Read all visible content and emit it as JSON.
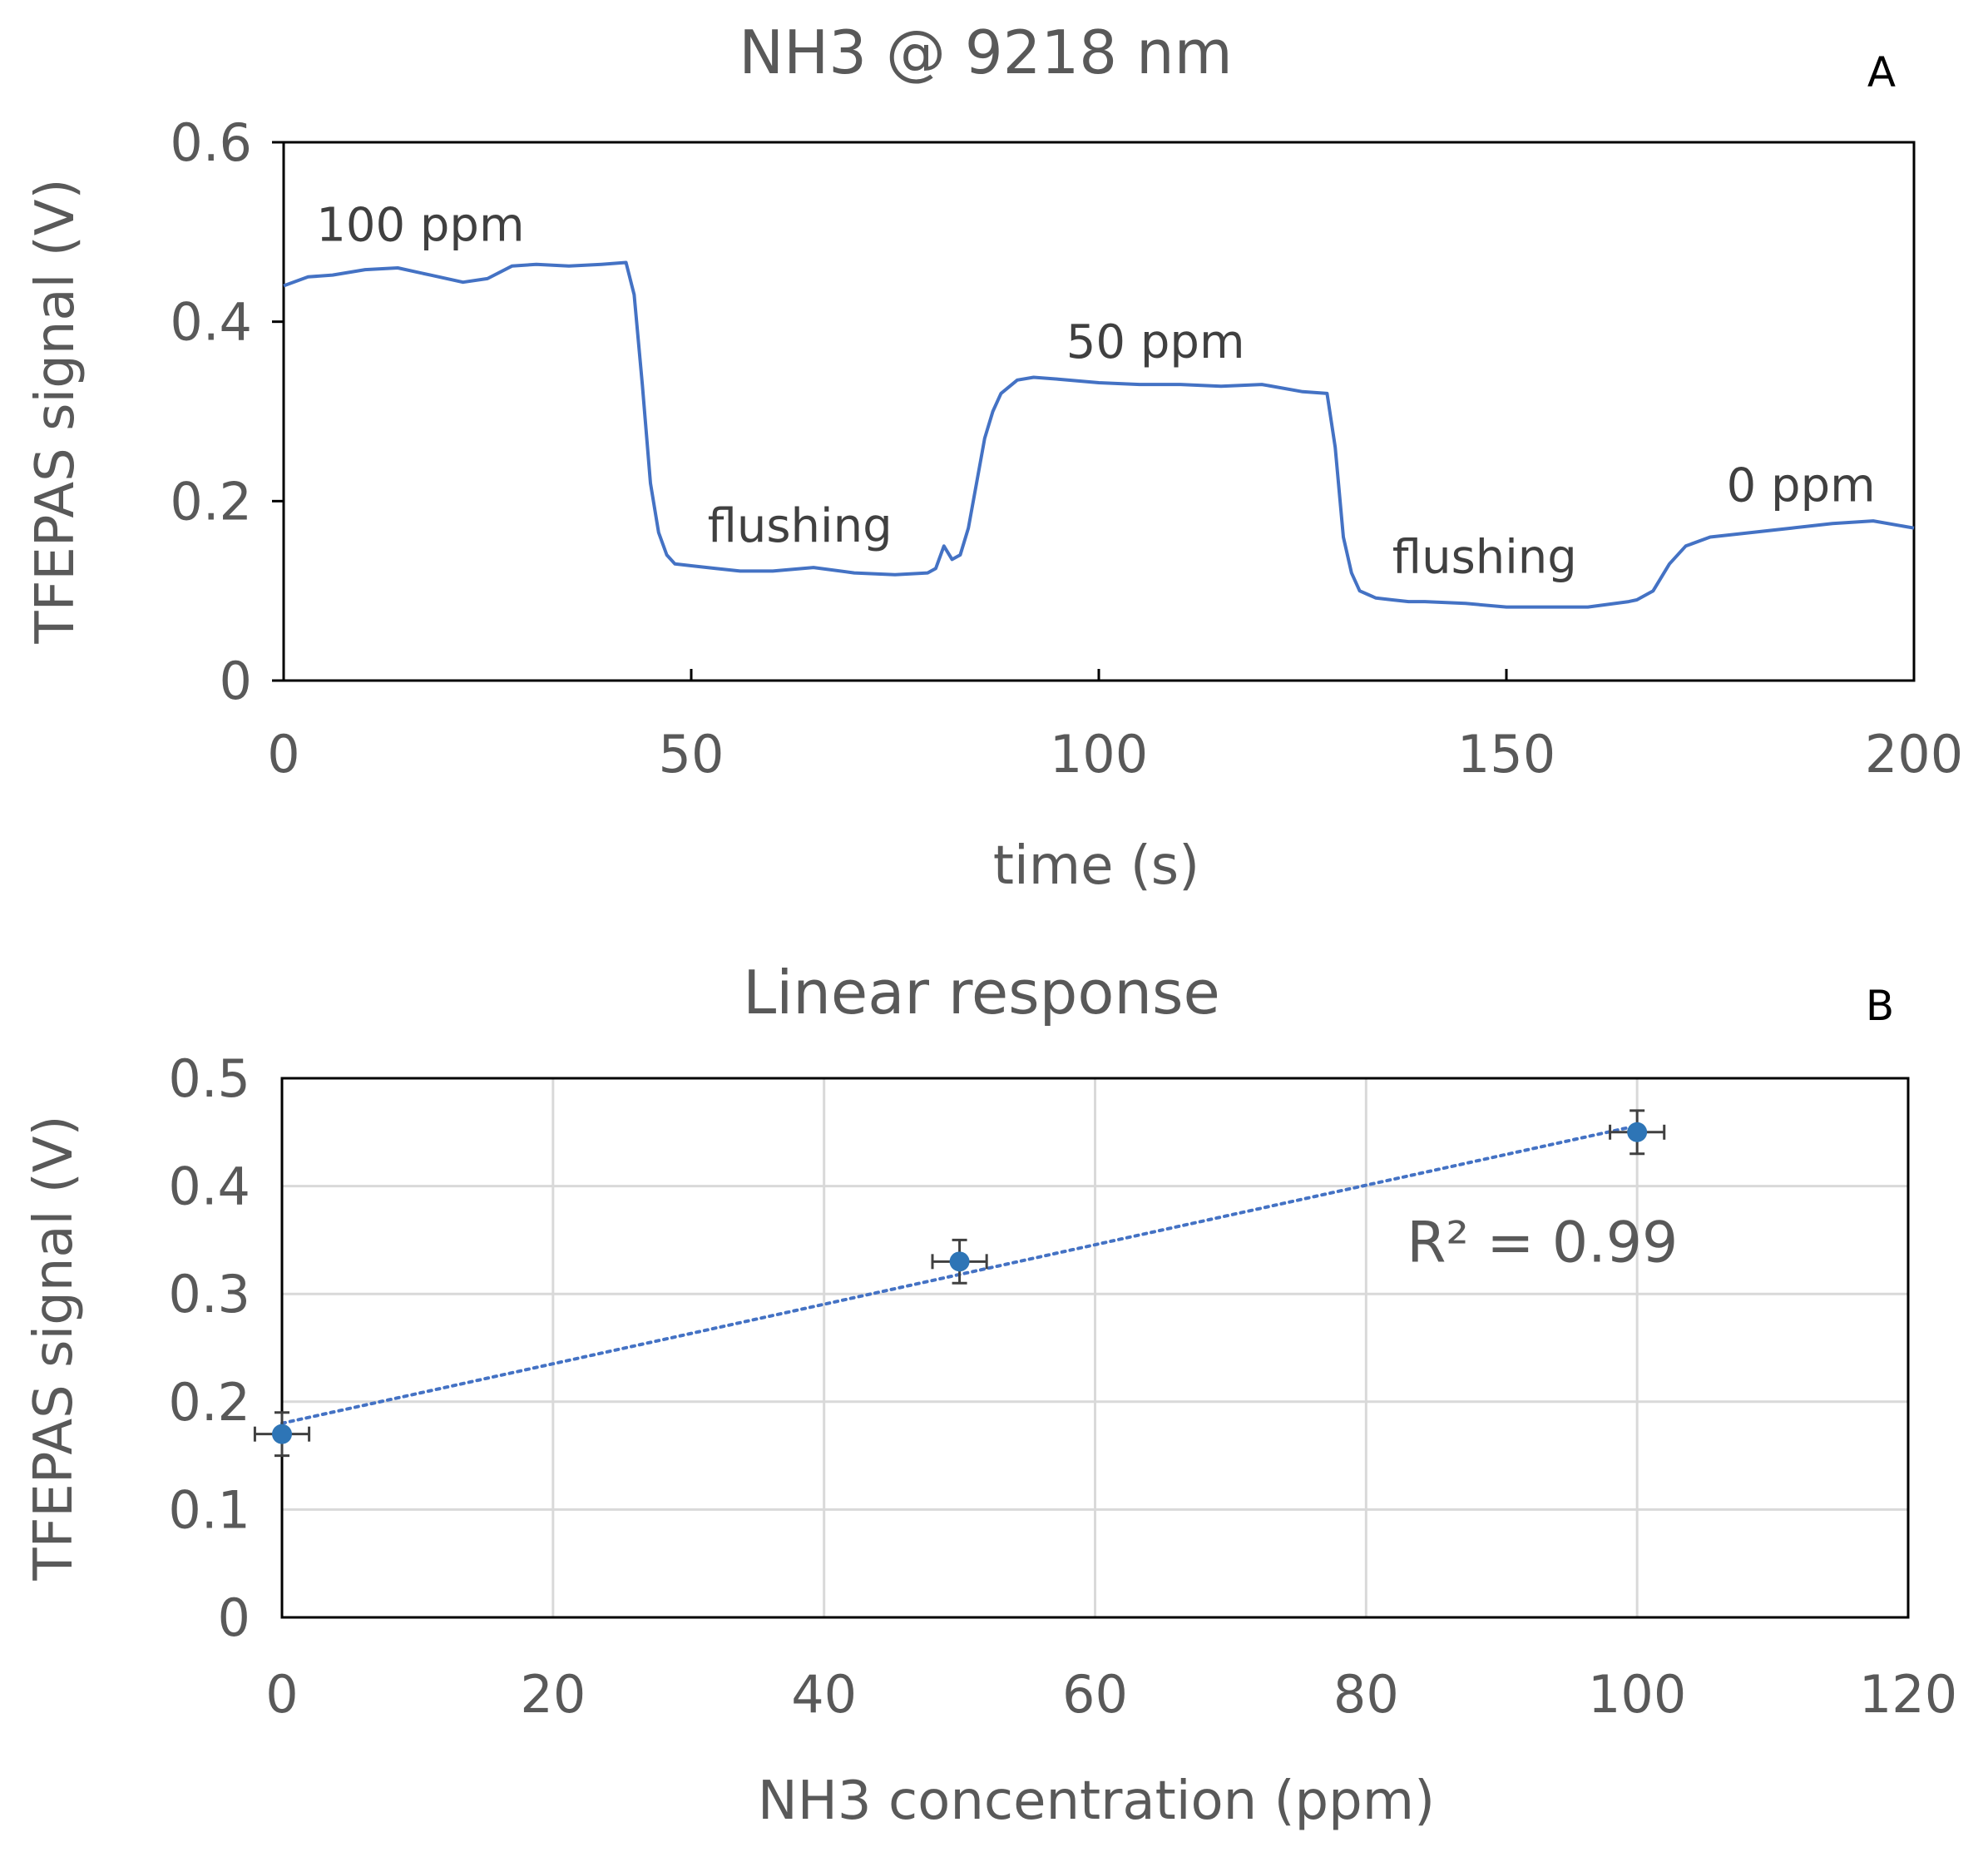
{
  "chart_data": [
    {
      "type": "line",
      "panel": "A",
      "title": "NH3 @ 9218 nm",
      "xlabel": "time (s)",
      "ylabel": "TFEPAS signal (V)",
      "xlim": [
        0,
        200
      ],
      "ylim": [
        0,
        0.6
      ],
      "xticks": [
        "0",
        "50",
        "100",
        "150",
        "200"
      ],
      "yticks": [
        "0",
        "0.2",
        "0.4",
        "0.6"
      ],
      "grid": false,
      "series": [
        {
          "color": "#4472C4",
          "x": [
            0,
            3,
            6,
            10,
            14,
            18,
            22,
            25,
            28,
            31,
            35,
            39,
            42,
            43,
            44,
            45,
            46,
            47,
            48,
            50,
            53,
            56,
            60,
            65,
            70,
            75,
            79,
            80,
            81,
            82,
            83,
            84,
            85,
            86,
            87,
            88,
            90,
            92,
            95,
            100,
            105,
            110,
            115,
            120,
            125,
            128,
            129,
            130,
            131,
            132,
            133,
            134,
            136,
            138,
            140,
            145,
            150,
            155,
            160,
            165,
            166,
            168,
            170,
            172,
            175,
            180,
            185,
            190,
            195,
            200
          ],
          "y": [
            0.44,
            0.45,
            0.452,
            0.458,
            0.46,
            0.452,
            0.444,
            0.448,
            0.462,
            0.464,
            0.462,
            0.464,
            0.466,
            0.43,
            0.33,
            0.22,
            0.165,
            0.14,
            0.13,
            0.128,
            0.125,
            0.122,
            0.122,
            0.126,
            0.12,
            0.118,
            0.12,
            0.125,
            0.15,
            0.135,
            0.14,
            0.17,
            0.22,
            0.27,
            0.3,
            0.32,
            0.335,
            0.338,
            0.336,
            0.332,
            0.33,
            0.33,
            0.328,
            0.33,
            0.322,
            0.32,
            0.26,
            0.16,
            0.12,
            0.1,
            0.096,
            0.092,
            0.09,
            0.088,
            0.088,
            0.086,
            0.082,
            0.082,
            0.082,
            0.088,
            0.09,
            0.1,
            0.13,
            0.15,
            0.16,
            0.165,
            0.17,
            0.175,
            0.178,
            0.17
          ]
        }
      ],
      "annotations": [
        {
          "text": "100 ppm",
          "x": 4,
          "y": 0.49
        },
        {
          "text": "flushing",
          "x": 52,
          "y": 0.155
        },
        {
          "text": "50 ppm",
          "x": 96,
          "y": 0.36
        },
        {
          "text": "flushing",
          "x": 136,
          "y": 0.12
        },
        {
          "text": "0 ppm",
          "x": 177,
          "y": 0.2
        }
      ]
    },
    {
      "type": "scatter",
      "panel": "B",
      "title": "Linear response",
      "xlabel": "NH3 concentration (ppm)",
      "ylabel": "TFEPAS signal (V)",
      "xlim": [
        0,
        120
      ],
      "ylim": [
        0,
        0.5
      ],
      "xticks": [
        "0",
        "20",
        "40",
        "60",
        "80",
        "100",
        "120"
      ],
      "yticks": [
        "0",
        "0.1",
        "0.2",
        "0.3",
        "0.4",
        "0.5"
      ],
      "grid": true,
      "series": [
        {
          "color": "#2E75B6",
          "x": [
            0,
            50,
            100
          ],
          "y": [
            0.17,
            0.33,
            0.45
          ],
          "x_err": [
            2,
            2,
            2
          ],
          "y_err": [
            0.02,
            0.02,
            0.02
          ]
        }
      ],
      "trendline": {
        "type": "linear",
        "style": "dotted",
        "from": [
          0,
          0.18
        ],
        "to": [
          100,
          0.456
        ]
      },
      "annotations": [
        {
          "text": "R² = 0.99",
          "x": 83,
          "y": 0.33
        }
      ]
    }
  ]
}
